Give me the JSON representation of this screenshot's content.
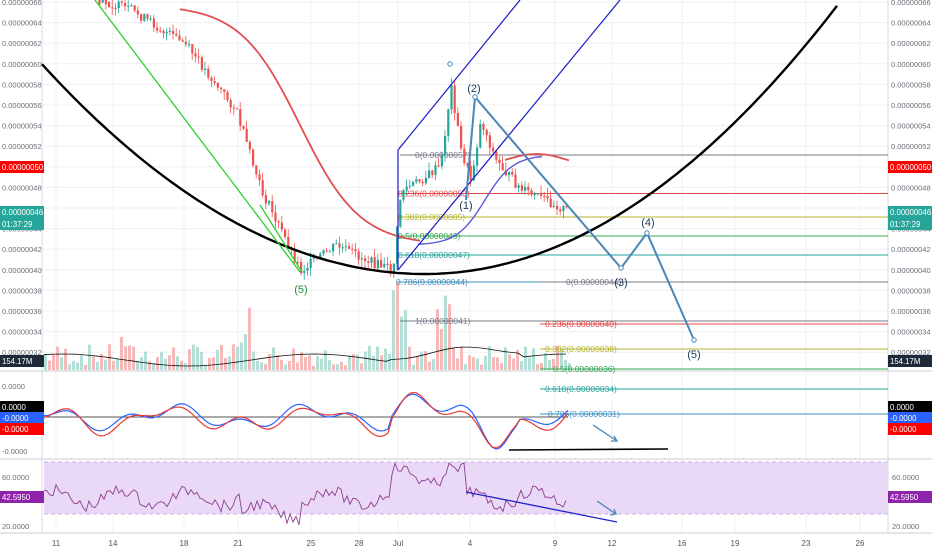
{
  "chart_data": [
    {
      "type": "candlestick",
      "panel": "price",
      "y_ticks": [
        "0.00000066",
        "0.00000064",
        "0.00000062",
        "0.00000060",
        "0.00000058",
        "0.00000056",
        "0.00000054",
        "0.00000052",
        "0.00000050",
        "0.00000048",
        "0.00000046",
        "0.00000044",
        "0.00000042",
        "0.00000040",
        "0.00000038",
        "0.00000036",
        "0.00000034",
        "0.00000032"
      ],
      "ylim": [
        3.1e-07,
        6.65e-07
      ],
      "x_ticks": [
        "11",
        "14",
        "18",
        "21",
        "25",
        "28",
        "Jul",
        "4",
        "9",
        "12",
        "16",
        "19",
        "23",
        "26"
      ],
      "price_badges": {
        "current": {
          "value": "0.00000046",
          "color": "#26a69a"
        },
        "countdown": "01:37:29",
        "marked": {
          "value": "0.00000050",
          "color": "#ff0000"
        },
        "volume": {
          "value": "154.17M",
          "color": "#1e2a3a"
        }
      },
      "fib_retracement_up": [
        {
          "label": "0(0.00000057)",
          "value": 5.71e-07,
          "color": "#787b86"
        },
        {
          "label": "0.236(0.00000053)",
          "value": 5.325e-07,
          "color": "#e04848"
        },
        {
          "label": "0.382(0.0000005)",
          "value": 5.09e-07,
          "color": "#b5b52a"
        },
        {
          "label": "0.5(0.00000049)",
          "value": 4.9e-07,
          "color": "#34a853"
        },
        {
          "label": "0.618(0.00000047)",
          "value": 4.71e-07,
          "color": "#26a69a"
        },
        {
          "label": "0.786(0.00000044)",
          "value": 4.44e-07,
          "color": "#3f8fbf"
        },
        {
          "label": "1(0.00000041)",
          "value": 4.05e-07,
          "color": "#787b86"
        }
      ],
      "fib_extension_down": [
        {
          "label": "0(0.00000044)",
          "value": 4.44e-07,
          "color": "#787b86"
        },
        {
          "label": "0.236(0.00000040)",
          "value": 4.02e-07,
          "color": "#e04848"
        },
        {
          "label": "0.382(0.00000038)",
          "value": 3.77e-07,
          "color": "#b5b52a"
        },
        {
          "label": "0.5(0.00000036)",
          "value": 3.57e-07,
          "color": "#34a853"
        },
        {
          "label": "0.618(0.00000034)",
          "value": 3.37e-07,
          "color": "#26a69a"
        },
        {
          "label": "0.786(0.00000031)",
          "value": 3.12e-07,
          "color": "#3f8fbf"
        }
      ],
      "wave_labels": [
        "(5)",
        "(2)",
        "(1)",
        "(3)",
        "(4)",
        "(5)"
      ],
      "colors": {
        "up": "#26a69a",
        "down": "#ef5350",
        "ma": "#e05050",
        "ma_short": "#5b5bd6",
        "cup": "#000000",
        "channel": "#1a1acc",
        "wave_path": "#4a86b8",
        "trend": "#33cc33"
      }
    },
    {
      "type": "line",
      "panel": "macd",
      "y_ticks": [
        "0.0000",
        "-0.0000"
      ],
      "badges": [
        {
          "value": "0.0000",
          "color": "#000000"
        },
        {
          "value": "-0.0000",
          "color": "#2962ff"
        },
        {
          "value": "-0.0000",
          "color": "#ff0000"
        }
      ],
      "series_colors": [
        "#2962ff",
        "#e53935"
      ]
    },
    {
      "type": "line",
      "panel": "rsi",
      "y_ticks": [
        "60.0000",
        "20.0000"
      ],
      "left_labels": [
        "60.0000",
        "20.0000"
      ],
      "current": {
        "value": "42.5950",
        "color": "#8e24aa"
      },
      "band_color": "#e9d9f7",
      "line_color": "#8e3c8e",
      "divergence_color": "#2222cc"
    }
  ]
}
